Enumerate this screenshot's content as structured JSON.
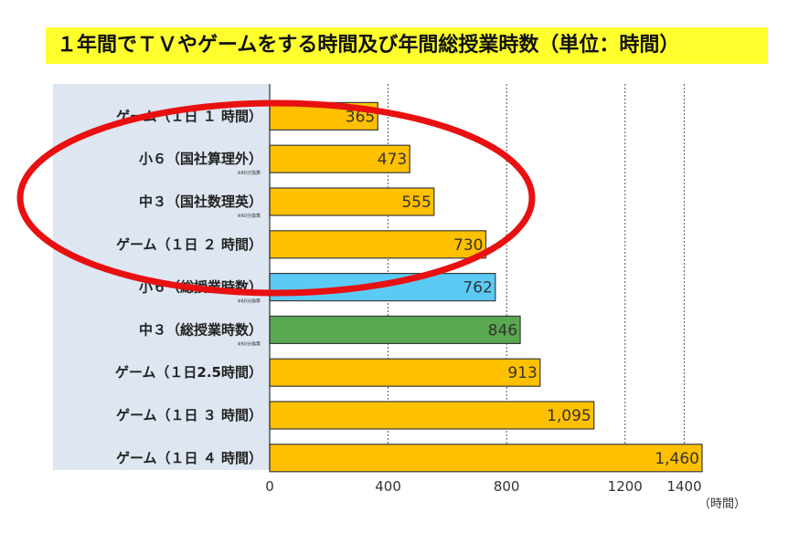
{
  "title": "１年間でＴＶやゲームをする時間及び年間総授業時数（単位：時間）",
  "chart_data": {
    "type": "bar",
    "orientation": "horizontal",
    "categories": [
      "ゲーム（１日 １ 時間）",
      "小６（国社算理外）",
      "中３（国社数理英）",
      "ゲーム（１日 ２ 時間）",
      "小６（総授業時数）",
      "中３（総授業時数）",
      "ゲーム（１日2.5時間）",
      "ゲーム（１日 ３ 時間）",
      "ゲーム（１日 ４ 時間）"
    ],
    "values": [
      365,
      473,
      555,
      730,
      762,
      846,
      913,
      1095,
      1460
    ],
    "value_labels": [
      "365",
      "473",
      "555",
      "730",
      "762",
      "846",
      "913",
      "1,095",
      "1,460"
    ],
    "notes": [
      "",
      "※60分換算",
      "※60分換算",
      "",
      "※60分換算",
      "※60分換算",
      "",
      "",
      ""
    ],
    "bar_colors": [
      "#ffc000",
      "#ffc000",
      "#ffc000",
      "#ffc000",
      "#5bcbf5",
      "#5aa850",
      "#ffc000",
      "#ffc000",
      "#ffc000"
    ],
    "xlim": [
      0,
      1400
    ],
    "xticks": [
      0,
      400,
      800,
      1200,
      1400
    ],
    "xticks_dashed": [
      400,
      800,
      1200,
      1400
    ],
    "x_unit_label": "（時間）",
    "highlight": {
      "shape": "ellipse",
      "color": "#e81010",
      "covers_categories": [
        "小６（国社算理外）",
        "中３（国社数理英）",
        "ゲーム（１日 ２ 時間）"
      ]
    }
  }
}
